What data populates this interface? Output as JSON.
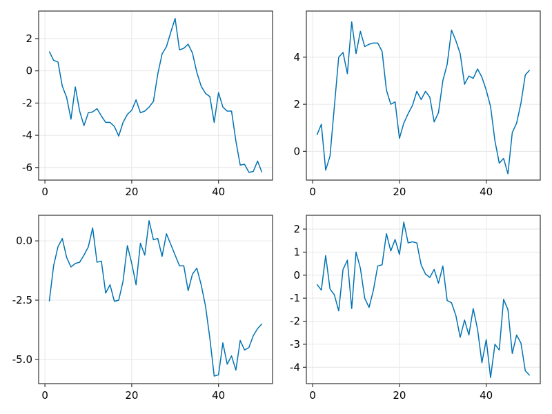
{
  "colors": {
    "series": "#0072b2"
  },
  "chart_data": [
    {
      "type": "line",
      "xlim": [
        -1.45,
        52.45
      ],
      "ylim": [
        -6.78,
        3.71
      ],
      "x_ticks": [
        0,
        20,
        40
      ],
      "y_ticks": [
        2,
        0,
        -2,
        -4,
        -6
      ],
      "y_tick_labels": [
        "2",
        "0",
        "-2",
        "-4",
        "-6"
      ],
      "grid": true,
      "series": [
        {
          "x": [
            1,
            2,
            3,
            4,
            5,
            6,
            7,
            8,
            9,
            10,
            11,
            12,
            13,
            14,
            15,
            16,
            17,
            18,
            19,
            20,
            21,
            22,
            23,
            24,
            25,
            26,
            27,
            28,
            29,
            30,
            31,
            32,
            33,
            34,
            35,
            36,
            37,
            38,
            39,
            40,
            41,
            42,
            43,
            44,
            45,
            46,
            47,
            48,
            49,
            50
          ],
          "values": [
            1.2,
            0.65,
            0.55,
            -0.95,
            -1.65,
            -3.0,
            -1.0,
            -2.5,
            -3.4,
            -2.6,
            -2.55,
            -2.35,
            -2.8,
            -3.2,
            -3.2,
            -3.45,
            -4.05,
            -3.2,
            -2.7,
            -2.45,
            -1.8,
            -2.6,
            -2.5,
            -2.25,
            -1.9,
            -0.2,
            1.05,
            1.5,
            2.4,
            3.25,
            1.3,
            1.4,
            1.65,
            1.1,
            -0.1,
            -0.95,
            -1.4,
            -1.6,
            -3.2,
            -1.35,
            -2.25,
            -2.5,
            -2.5,
            -4.35,
            -5.85,
            -5.8,
            -6.3,
            -6.25,
            -5.6,
            -6.3
          ]
        }
      ]
    },
    {
      "type": "line",
      "xlim": [
        -1.45,
        52.45
      ],
      "ylim": [
        -1.22,
        5.96
      ],
      "x_ticks": [
        0,
        20,
        40
      ],
      "y_ticks": [
        4,
        2,
        0
      ],
      "y_tick_labels": [
        "4",
        "2",
        "0"
      ],
      "grid": true,
      "series": [
        {
          "x": [
            1,
            2,
            3,
            4,
            5,
            6,
            7,
            8,
            9,
            10,
            11,
            12,
            13,
            14,
            15,
            16,
            17,
            18,
            19,
            20,
            21,
            22,
            23,
            24,
            25,
            26,
            27,
            28,
            29,
            30,
            31,
            32,
            33,
            34,
            35,
            36,
            37,
            38,
            39,
            40,
            41,
            42,
            43,
            44,
            45,
            46,
            47,
            48,
            49,
            50
          ],
          "values": [
            0.7,
            1.15,
            -0.8,
            -0.2,
            1.9,
            4.0,
            4.2,
            3.3,
            5.5,
            4.15,
            5.1,
            4.45,
            4.55,
            4.6,
            4.6,
            4.25,
            2.6,
            2.0,
            2.1,
            0.55,
            1.2,
            1.6,
            1.95,
            2.55,
            2.2,
            2.55,
            2.3,
            1.25,
            1.65,
            3.0,
            3.7,
            5.15,
            4.7,
            4.15,
            2.85,
            3.2,
            3.1,
            3.5,
            3.15,
            2.6,
            1.9,
            0.45,
            -0.5,
            -0.3,
            -0.95,
            0.8,
            1.2,
            2.05,
            3.25,
            3.45
          ]
        }
      ]
    },
    {
      "type": "line",
      "xlim": [
        -1.45,
        52.45
      ],
      "ylim": [
        -6.02,
        1.08
      ],
      "x_ticks": [
        0,
        20,
        40
      ],
      "y_ticks": [
        0,
        -2.5,
        -5
      ],
      "y_tick_labels": [
        "0.0",
        "-2.5",
        "-5.0"
      ],
      "grid": true,
      "series": [
        {
          "x": [
            1,
            2,
            3,
            4,
            5,
            6,
            7,
            8,
            9,
            10,
            11,
            12,
            13,
            14,
            15,
            16,
            17,
            18,
            19,
            20,
            21,
            22,
            23,
            24,
            25,
            26,
            27,
            28,
            29,
            30,
            31,
            32,
            33,
            34,
            35,
            36,
            37,
            38,
            39,
            40,
            41,
            42,
            43,
            44,
            45,
            46,
            47,
            48,
            49,
            50
          ],
          "values": [
            -2.55,
            -1.05,
            -0.25,
            0.1,
            -0.7,
            -1.1,
            -0.95,
            -0.9,
            -0.6,
            -0.25,
            0.55,
            -0.9,
            -0.85,
            -2.2,
            -1.85,
            -2.55,
            -2.5,
            -1.7,
            -0.2,
            -0.95,
            -1.85,
            -0.1,
            -0.6,
            0.85,
            0.05,
            0.1,
            -0.65,
            0.3,
            -0.15,
            -0.6,
            -1.05,
            -1.05,
            -2.1,
            -1.4,
            -1.15,
            -1.85,
            -2.75,
            -4.1,
            -5.7,
            -5.65,
            -4.3,
            -5.2,
            -4.85,
            -5.45,
            -4.2,
            -4.6,
            -4.5,
            -4.0,
            -3.7,
            -3.5
          ]
        }
      ]
    },
    {
      "type": "line",
      "xlim": [
        -1.45,
        52.45
      ],
      "ylim": [
        -4.71,
        2.6
      ],
      "x_ticks": [
        0,
        20,
        40
      ],
      "y_ticks": [
        2,
        1,
        0,
        -1,
        -2,
        -3,
        -4
      ],
      "y_tick_labels": [
        "2",
        "1",
        "0",
        "-1",
        "-2",
        "-3",
        "-4"
      ],
      "grid": true,
      "series": [
        {
          "x": [
            1,
            2,
            3,
            4,
            5,
            6,
            7,
            8,
            9,
            10,
            11,
            12,
            13,
            14,
            15,
            16,
            17,
            18,
            19,
            20,
            21,
            22,
            23,
            24,
            25,
            26,
            27,
            28,
            29,
            30,
            31,
            32,
            33,
            34,
            35,
            36,
            37,
            38,
            39,
            40,
            41,
            42,
            43,
            44,
            45,
            46,
            47,
            48,
            49,
            50
          ],
          "values": [
            -0.4,
            -0.65,
            0.85,
            -0.6,
            -0.85,
            -1.55,
            0.25,
            0.65,
            -1.45,
            1.0,
            0.3,
            -1.0,
            -1.4,
            -0.65,
            0.4,
            0.45,
            1.8,
            1.05,
            1.55,
            0.9,
            2.3,
            1.4,
            1.45,
            1.4,
            0.45,
            0.05,
            -0.1,
            0.25,
            -0.35,
            0.4,
            -1.1,
            -1.2,
            -1.75,
            -2.7,
            -1.95,
            -2.6,
            -1.45,
            -2.35,
            -3.8,
            -2.8,
            -4.45,
            -3.0,
            -3.25,
            -1.05,
            -1.5,
            -3.4,
            -2.6,
            -2.95,
            -4.15,
            -4.35
          ]
        }
      ]
    }
  ]
}
